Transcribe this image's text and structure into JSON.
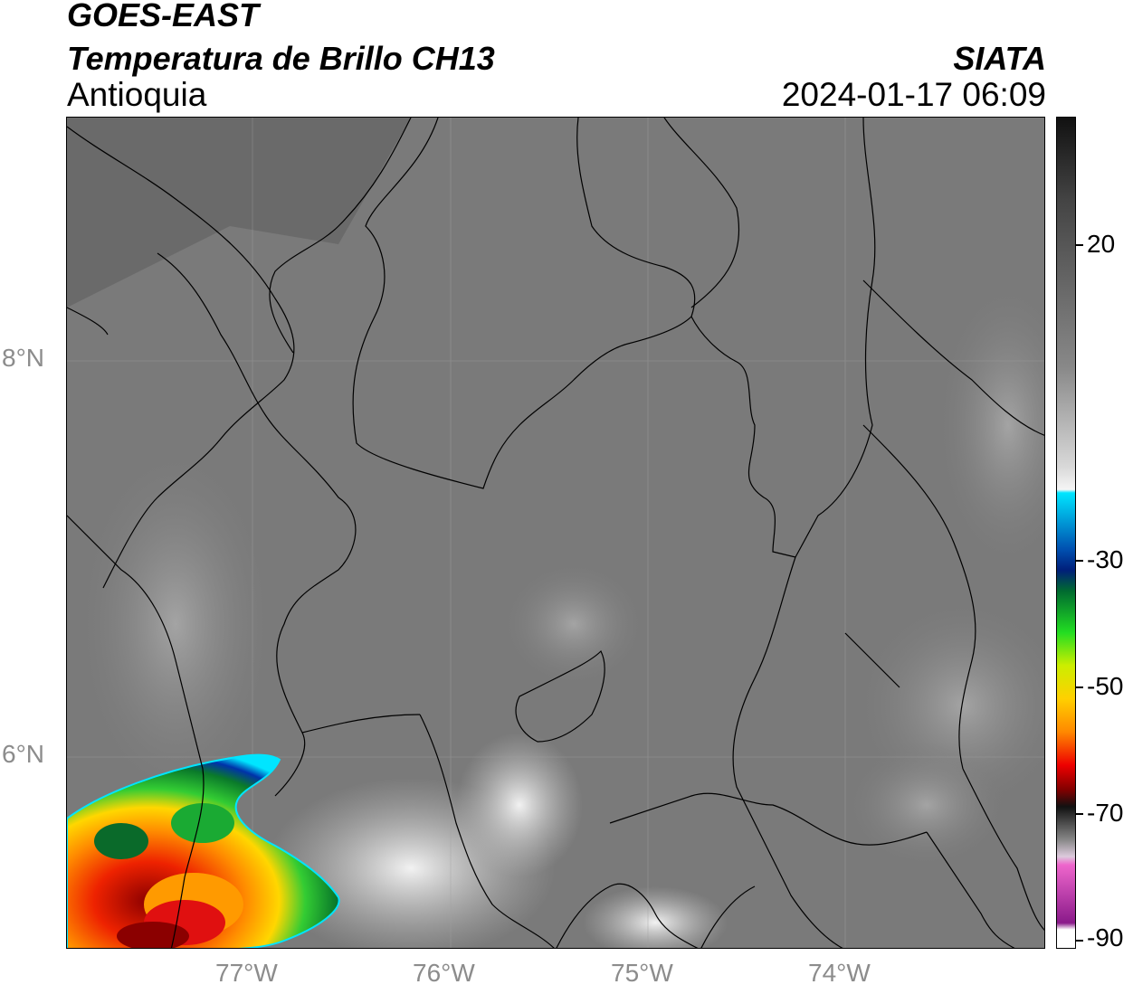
{
  "header": {
    "satellite": "GOES-EAST",
    "product": "Temperatura de Brillo CH13",
    "region": "Antioquia",
    "source": "SIATA",
    "datetime": "2024-01-17 06:09"
  },
  "map": {
    "lat_ticks": [
      "8°N",
      "6°N"
    ],
    "lon_ticks": [
      "77°W",
      "76°W",
      "75°W",
      "74°W"
    ],
    "colors": {
      "background_gray": "#7a7a7a",
      "boundary": "#000000",
      "grid": "#a0a0a0"
    }
  },
  "colorbar": {
    "labels": [
      "20",
      "-30",
      "-50",
      "-70",
      "-90"
    ],
    "stops": [
      {
        "offset": 0.0,
        "color": "#111111"
      },
      {
        "offset": 0.1,
        "color": "#444444"
      },
      {
        "offset": 0.3,
        "color": "#888888"
      },
      {
        "offset": 0.42,
        "color": "#d8d8d8"
      },
      {
        "offset": 0.448,
        "color": "#f5f5f5"
      },
      {
        "offset": 0.452,
        "color": "#00e5ff"
      },
      {
        "offset": 0.52,
        "color": "#0050b0"
      },
      {
        "offset": 0.545,
        "color": "#001f7a"
      },
      {
        "offset": 0.57,
        "color": "#006a30"
      },
      {
        "offset": 0.62,
        "color": "#22dd22"
      },
      {
        "offset": 0.66,
        "color": "#ccee00"
      },
      {
        "offset": 0.7,
        "color": "#ffd000"
      },
      {
        "offset": 0.74,
        "color": "#ff8800"
      },
      {
        "offset": 0.78,
        "color": "#ee0000"
      },
      {
        "offset": 0.81,
        "color": "#800000"
      },
      {
        "offset": 0.83,
        "color": "#111111"
      },
      {
        "offset": 0.87,
        "color": "#888888"
      },
      {
        "offset": 0.89,
        "color": "#dccadc"
      },
      {
        "offset": 0.9,
        "color": "#ee66cc"
      },
      {
        "offset": 0.97,
        "color": "#8a1a8a"
      },
      {
        "offset": 0.978,
        "color": "#ffffff"
      },
      {
        "offset": 1.0,
        "color": "#ffffff"
      }
    ]
  }
}
